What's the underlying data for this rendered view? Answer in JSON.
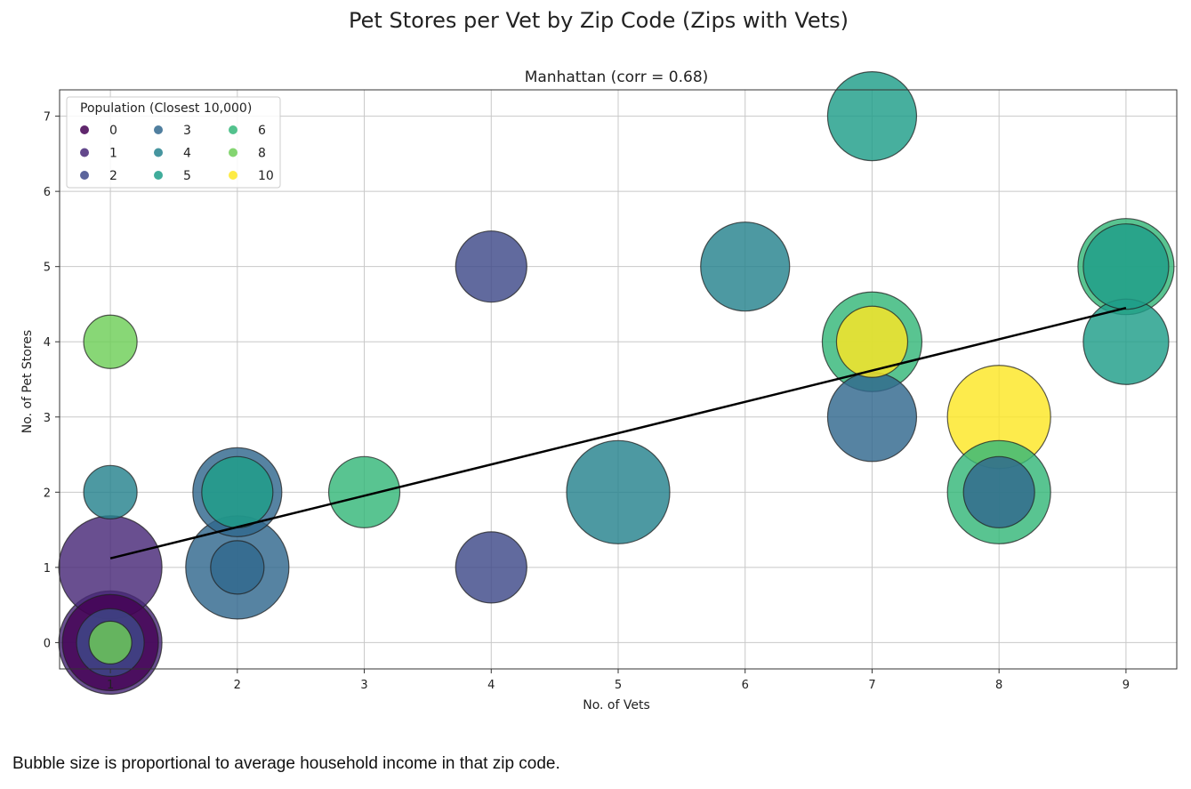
{
  "figure": {
    "suptitle": "Pet Stores per Vet by Zip Code (Zips with Vets)",
    "caption": "Bubble size is proportional to average household income in that zip code."
  },
  "chart_data": {
    "type": "scatter",
    "title": "Manhattan (corr = 0.68)",
    "xlabel": "No. of Vets",
    "ylabel": "No. of Pet Stores",
    "xlim": [
      0.6,
      9.4
    ],
    "ylim": [
      -0.35,
      7.35
    ],
    "xticks": [
      1,
      2,
      3,
      4,
      5,
      6,
      7,
      8,
      9
    ],
    "yticks": [
      0,
      1,
      2,
      3,
      4,
      5,
      6,
      7
    ],
    "grid": true,
    "legend": {
      "title": "Population (Closest 10,000)",
      "placement": "top-left",
      "entries": [
        {
          "label": "0",
          "color": "#440154"
        },
        {
          "label": "1",
          "color": "#482878"
        },
        {
          "label": "2",
          "color": "#3e4989"
        },
        {
          "label": "3",
          "color": "#31688e"
        },
        {
          "label": "4",
          "color": "#26828e"
        },
        {
          "label": "5",
          "color": "#1f9e89"
        },
        {
          "label": "6",
          "color": "#35b779"
        },
        {
          "label": "8",
          "color": "#6ece58"
        },
        {
          "label": "10",
          "color": "#fde725"
        }
      ]
    },
    "trendline": {
      "x": [
        1,
        9
      ],
      "y": [
        1.12,
        4.45
      ],
      "color": "#000000"
    },
    "points": [
      {
        "x": 1,
        "y": 0,
        "population": 1,
        "income": 1.45
      },
      {
        "x": 1,
        "y": 0,
        "population": 0,
        "income": 1.35
      },
      {
        "x": 1,
        "y": 0,
        "population": 2,
        "income": 0.95
      },
      {
        "x": 1,
        "y": 0,
        "population": 8,
        "income": 0.6
      },
      {
        "x": 1,
        "y": 1,
        "population": 1,
        "income": 1.45
      },
      {
        "x": 1,
        "y": 2,
        "population": 4,
        "income": 0.75
      },
      {
        "x": 1,
        "y": 4,
        "population": 8,
        "income": 0.75
      },
      {
        "x": 2,
        "y": 1,
        "population": 3,
        "income": 1.45
      },
      {
        "x": 2,
        "y": 1,
        "population": 3,
        "income": 0.75
      },
      {
        "x": 2,
        "y": 2,
        "population": 3,
        "income": 1.25
      },
      {
        "x": 2,
        "y": 2,
        "population": 5,
        "income": 1.0
      },
      {
        "x": 3,
        "y": 2,
        "population": 6,
        "income": 1.0
      },
      {
        "x": 4,
        "y": 1,
        "population": 2,
        "income": 1.0
      },
      {
        "x": 4,
        "y": 5,
        "population": 2,
        "income": 1.0
      },
      {
        "x": 5,
        "y": 2,
        "population": 4,
        "income": 1.45
      },
      {
        "x": 6,
        "y": 5,
        "population": 4,
        "income": 1.25
      },
      {
        "x": 7,
        "y": 7,
        "population": 5,
        "income": 1.25
      },
      {
        "x": 7,
        "y": 3,
        "population": 3,
        "income": 1.25
      },
      {
        "x": 7,
        "y": 4,
        "population": 6,
        "income": 1.4
      },
      {
        "x": 7,
        "y": 4,
        "population": 10,
        "income": 1.0
      },
      {
        "x": 8,
        "y": 3,
        "population": 10,
        "income": 1.45
      },
      {
        "x": 8,
        "y": 2,
        "population": 6,
        "income": 1.45
      },
      {
        "x": 8,
        "y": 2,
        "population": 3,
        "income": 1.0
      },
      {
        "x": 9,
        "y": 4,
        "population": 5,
        "income": 1.2
      },
      {
        "x": 9,
        "y": 5,
        "population": 6,
        "income": 1.35
      },
      {
        "x": 9,
        "y": 5,
        "population": 5,
        "income": 1.2
      }
    ]
  }
}
